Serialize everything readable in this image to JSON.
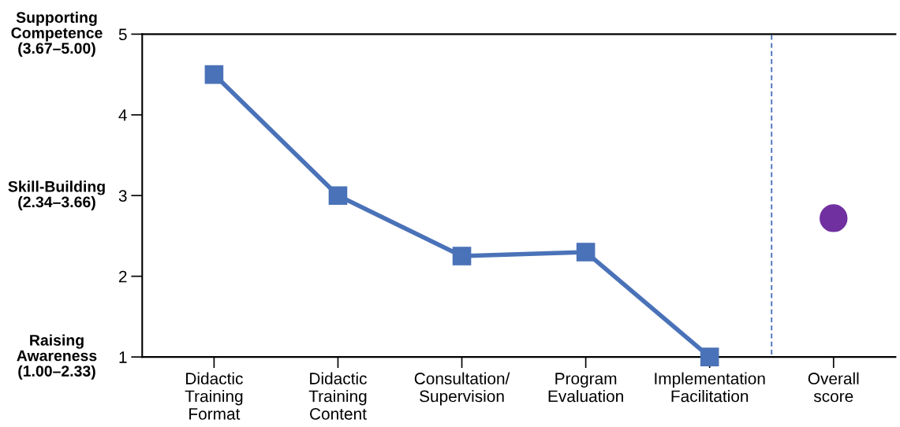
{
  "chart_data": {
    "type": "line",
    "categories": [
      "Didactic\nTraining\nFormat",
      "Didactic\nTraining\nContent",
      "Consultation/\nSupervision",
      "Program\nEvaluation",
      "Implementation\nFacilitation",
      "Overall\nscore"
    ],
    "series": [
      {
        "type": "line",
        "color": "#4a72b8",
        "marker": "square",
        "line_style": "solid",
        "values": [
          4.5,
          3.0,
          2.25,
          2.3,
          1.0,
          null
        ]
      },
      {
        "type": "scatter",
        "color": "#7030a0",
        "marker": "circle",
        "x": [
          "Overall\nscore"
        ],
        "values": [
          2.72
        ]
      }
    ],
    "ylim": [
      1,
      5
    ],
    "yticks": [
      1,
      2,
      3,
      4,
      5
    ],
    "grid": false,
    "legend": false,
    "annotations": [
      "Supporting\nCompetence\n(3.67–5.00)",
      "Skill-Building\n(2.34–3.66)",
      "Raising\nAwareness\n(1.00–2.33)"
    ]
  }
}
